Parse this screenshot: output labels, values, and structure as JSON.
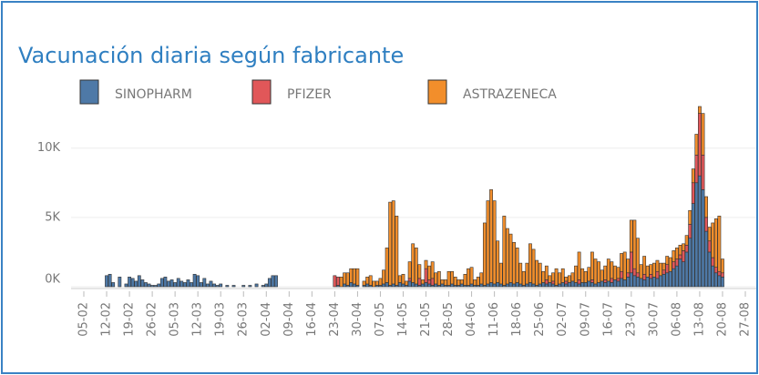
{
  "chart_data": {
    "type": "stacked_bar",
    "title": "Vacunación diaria según fabricante",
    "categories": [
      "05-02",
      null,
      null,
      null,
      null,
      null,
      null,
      "12-02",
      null,
      null,
      null,
      null,
      null,
      null,
      "19-02",
      null,
      null,
      null,
      null,
      null,
      null,
      "26-02",
      null,
      null,
      null,
      null,
      null,
      null,
      "05-03",
      null,
      null,
      null,
      null,
      null,
      null,
      "12-03",
      null,
      null,
      null,
      null,
      null,
      null,
      "19-03",
      null,
      null,
      null,
      null,
      null,
      null,
      "26-03",
      null,
      null,
      null,
      null,
      null,
      null,
      "02-04",
      null,
      null,
      null,
      null,
      null,
      null,
      "09-04",
      null,
      null,
      null,
      null,
      null,
      null,
      "16-04",
      null,
      null,
      null,
      null,
      null,
      null,
      "23-04",
      null,
      null,
      null,
      null,
      null,
      null,
      "30-04",
      null,
      null,
      null,
      null,
      null,
      null,
      "07-05",
      null,
      null,
      null,
      null,
      null,
      null,
      "14-05",
      null,
      null,
      null,
      null,
      null,
      null,
      "21-05",
      null,
      null,
      null,
      null,
      null,
      null,
      "28-05",
      null,
      null,
      null,
      null,
      null,
      null,
      "04-06",
      null,
      null,
      null,
      null,
      null,
      null,
      "11-06",
      null,
      null,
      null,
      null,
      null,
      null,
      "18-06",
      null,
      null,
      null,
      null,
      null,
      null,
      "25-06",
      null,
      null,
      null,
      null,
      null,
      null,
      "02-07",
      null,
      null,
      null,
      null,
      null,
      null,
      "09-07",
      null,
      null,
      null,
      null,
      null,
      null,
      "16-07",
      null,
      null,
      null,
      null,
      null,
      null,
      "23-07",
      null,
      null,
      null,
      null,
      null,
      null,
      "30-07",
      null,
      null,
      null,
      null,
      null,
      null,
      "06-08",
      null,
      null,
      null,
      null,
      null,
      null,
      "13-08",
      null,
      null,
      null,
      null,
      null,
      null,
      "20-08",
      null,
      null,
      null,
      null,
      null,
      null,
      "27-08"
    ],
    "series": [
      {
        "name": "SINOPHARM",
        "color": "#4e79a7",
        "values": [
          0,
          0,
          0,
          0,
          0,
          0,
          0,
          800,
          900,
          300,
          0,
          700,
          0,
          200,
          700,
          600,
          400,
          800,
          500,
          300,
          200,
          100,
          100,
          200,
          600,
          700,
          400,
          500,
          300,
          600,
          400,
          300,
          500,
          300,
          900,
          800,
          300,
          600,
          200,
          400,
          200,
          100,
          200,
          0,
          100,
          0,
          100,
          0,
          0,
          100,
          0,
          100,
          0,
          200,
          0,
          100,
          200,
          600,
          800,
          800,
          0,
          0,
          0,
          0,
          0,
          0,
          0,
          0,
          0,
          0,
          0,
          0,
          0,
          0,
          0,
          0,
          0,
          0,
          100,
          0,
          200,
          100,
          300,
          200,
          100,
          0,
          100,
          200,
          100,
          0,
          100,
          100,
          200,
          300,
          100,
          200,
          100,
          300,
          200,
          100,
          400,
          300,
          200,
          100,
          200,
          300,
          200,
          100,
          200,
          100,
          200,
          100,
          100,
          200,
          100,
          100,
          200,
          100,
          100,
          200,
          100,
          100,
          200,
          100,
          200,
          300,
          200,
          300,
          200,
          100,
          200,
          300,
          200,
          300,
          200,
          100,
          200,
          300,
          200,
          100,
          200,
          300,
          200,
          300,
          200,
          100,
          200,
          300,
          200,
          300,
          400,
          300,
          200,
          300,
          300,
          400,
          300,
          200,
          300,
          400,
          300,
          400,
          300,
          500,
          400,
          600,
          500,
          700,
          1000,
          800,
          700,
          600,
          500,
          700,
          600,
          700,
          600,
          800,
          900,
          1000,
          1100,
          1300,
          1500,
          2000,
          1800,
          2500,
          3500,
          6000,
          7500,
          8000,
          7000,
          4000,
          2500,
          1500,
          1000,
          800,
          700,
          0,
          0,
          0,
          0,
          0,
          0,
          0
        ]
      },
      {
        "name": "PFIZER",
        "color": "#e15759",
        "values": [
          0,
          0,
          0,
          0,
          0,
          0,
          0,
          0,
          0,
          0,
          0,
          0,
          0,
          0,
          0,
          0,
          0,
          0,
          0,
          0,
          0,
          0,
          0,
          0,
          0,
          0,
          0,
          0,
          0,
          0,
          0,
          0,
          0,
          0,
          0,
          0,
          0,
          0,
          0,
          0,
          0,
          0,
          0,
          0,
          0,
          0,
          0,
          0,
          0,
          0,
          0,
          0,
          0,
          0,
          0,
          0,
          0,
          0,
          0,
          0,
          0,
          0,
          0,
          0,
          0,
          0,
          0,
          0,
          0,
          0,
          0,
          0,
          0,
          0,
          0,
          0,
          0,
          800,
          600,
          0,
          0,
          0,
          0,
          0,
          0,
          0,
          0,
          0,
          0,
          0,
          0,
          0,
          0,
          0,
          0,
          0,
          0,
          0,
          0,
          0,
          200,
          0,
          0,
          500,
          0,
          1000,
          300,
          500,
          0,
          0,
          0,
          0,
          0,
          0,
          0,
          0,
          0,
          0,
          0,
          0,
          0,
          0,
          0,
          0,
          0,
          0,
          0,
          0,
          0,
          0,
          0,
          0,
          0,
          0,
          0,
          0,
          0,
          0,
          0,
          0,
          0,
          0,
          300,
          0,
          200,
          0,
          0,
          0,
          200,
          0,
          0,
          0,
          300,
          0,
          0,
          0,
          200,
          0,
          0,
          0,
          200,
          0,
          300,
          0,
          200,
          500,
          0,
          300,
          1500,
          500,
          300,
          0,
          400,
          0,
          300,
          0,
          500,
          0,
          300,
          600,
          0,
          500,
          500,
          300,
          800,
          500,
          1000,
          1500,
          2000,
          4500,
          2500,
          1000,
          800,
          600,
          400,
          300,
          300,
          0,
          0,
          0,
          0,
          0,
          0,
          0
        ]
      },
      {
        "name": "ASTRAZENECA",
        "color": "#f28e2b",
        "values": [
          0,
          0,
          0,
          0,
          0,
          0,
          0,
          0,
          0,
          0,
          0,
          0,
          0,
          0,
          0,
          0,
          0,
          0,
          0,
          0,
          0,
          0,
          0,
          0,
          0,
          0,
          0,
          0,
          0,
          0,
          0,
          0,
          0,
          0,
          0,
          0,
          0,
          0,
          0,
          0,
          0,
          0,
          0,
          0,
          0,
          0,
          0,
          0,
          0,
          0,
          0,
          0,
          0,
          0,
          0,
          0,
          0,
          0,
          0,
          0,
          0,
          0,
          0,
          0,
          0,
          0,
          0,
          0,
          0,
          0,
          0,
          0,
          0,
          0,
          0,
          0,
          0,
          0,
          0,
          700,
          800,
          900,
          1000,
          1100,
          1200,
          0,
          300,
          500,
          700,
          400,
          300,
          500,
          1000,
          2500,
          6000,
          6000,
          5000,
          500,
          700,
          300,
          1200,
          2800,
          2600,
          1000,
          300,
          600,
          1000,
          1200,
          800,
          1000,
          300,
          400,
          1000,
          900,
          600,
          400,
          300,
          800,
          1200,
          1200,
          400,
          600,
          800,
          4500,
          6000,
          6700,
          6000,
          3000,
          1500,
          5000,
          4000,
          3500,
          3000,
          2500,
          1500,
          1000,
          1500,
          2800,
          2500,
          1800,
          1500,
          800,
          1000,
          500,
          600,
          1200,
          800,
          1000,
          300,
          500,
          600,
          1200,
          2000,
          1000,
          800,
          1000,
          2000,
          1800,
          1500,
          800,
          1000,
          1600,
          1200,
          1000,
          800,
          1300,
          2000,
          1000,
          2300,
          3500,
          2500,
          1000,
          1300,
          800,
          700,
          1000,
          800,
          900,
          500,
          600,
          1000,
          800,
          800,
          700,
          500,
          700,
          1000,
          1000,
          1500,
          500,
          3000,
          1500,
          1000,
          2500,
          3500,
          4000,
          1000,
          0,
          0,
          0,
          0,
          0,
          0,
          0
        ]
      }
    ],
    "ylim": [
      0,
      13000
    ],
    "yticks": [
      {
        "value": 0,
        "label": "0K"
      },
      {
        "value": 5000,
        "label": "5K"
      },
      {
        "value": 10000,
        "label": "10K"
      }
    ],
    "grid": true
  }
}
